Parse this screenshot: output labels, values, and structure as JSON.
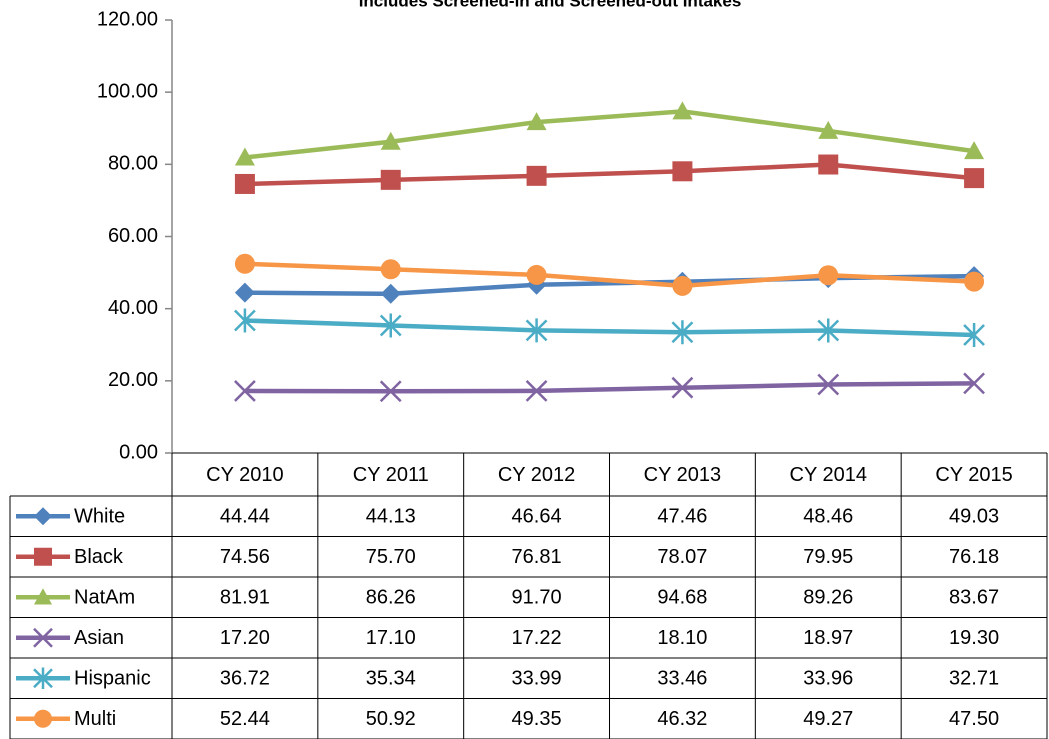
{
  "chart_data": {
    "type": "line",
    "subtitle": "Includes Screened-in and Screened-out Intakes",
    "categories": [
      "CY 2010",
      "CY 2011",
      "CY 2012",
      "CY 2013",
      "CY 2014",
      "CY 2015"
    ],
    "series": [
      {
        "name": "White",
        "color": "#4f81bd",
        "marker": "diamond",
        "values": [
          44.44,
          44.13,
          46.64,
          47.46,
          48.46,
          49.03
        ],
        "value_labels": [
          "44.44",
          "44.13",
          "46.64",
          "47.46",
          "48.46",
          "49.03"
        ]
      },
      {
        "name": "Black",
        "color": "#c0504d",
        "marker": "square",
        "values": [
          74.56,
          75.7,
          76.81,
          78.07,
          79.95,
          76.18
        ],
        "value_labels": [
          "74.56",
          "75.70",
          "76.81",
          "78.07",
          "79.95",
          "76.18"
        ]
      },
      {
        "name": "NatAm",
        "color": "#9bbb59",
        "marker": "triangle",
        "values": [
          81.91,
          86.26,
          91.7,
          94.68,
          89.26,
          83.67
        ],
        "value_labels": [
          "81.91",
          "86.26",
          "91.70",
          "94.68",
          "89.26",
          "83.67"
        ]
      },
      {
        "name": "Asian",
        "color": "#8064a2",
        "marker": "x",
        "values": [
          17.2,
          17.1,
          17.22,
          18.1,
          18.97,
          19.3
        ],
        "value_labels": [
          "17.20",
          "17.10",
          "17.22",
          "18.10",
          "18.97",
          "19.30"
        ]
      },
      {
        "name": "Hispanic",
        "color": "#4bacc6",
        "marker": "star",
        "values": [
          36.72,
          35.34,
          33.99,
          33.46,
          33.96,
          32.71
        ],
        "value_labels": [
          "36.72",
          "35.34",
          "33.99",
          "33.46",
          "33.96",
          "32.71"
        ]
      },
      {
        "name": "Multi",
        "color": "#f79646",
        "marker": "circle",
        "values": [
          52.44,
          50.92,
          49.35,
          46.32,
          49.27,
          47.5
        ],
        "value_labels": [
          "52.44",
          "50.92",
          "49.35",
          "46.32",
          "49.27",
          "47.50"
        ]
      }
    ],
    "ylim": [
      0,
      120
    ],
    "yticks": [
      {
        "value": 0,
        "label": "0.00"
      },
      {
        "value": 20,
        "label": "20.00"
      },
      {
        "value": 40,
        "label": "40.00"
      },
      {
        "value": 60,
        "label": "60.00"
      },
      {
        "value": 80,
        "label": "80.00"
      },
      {
        "value": 100,
        "label": "100.00"
      },
      {
        "value": 120,
        "label": "120.00"
      }
    ],
    "grid": false
  }
}
